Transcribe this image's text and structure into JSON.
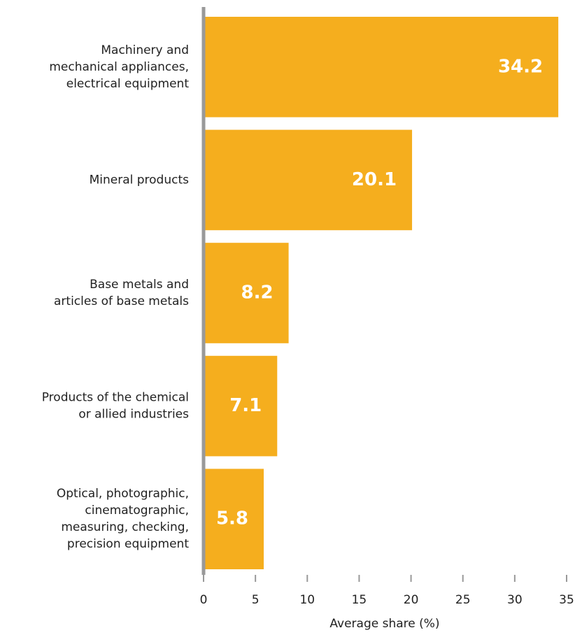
{
  "chart_data": {
    "type": "barh",
    "categories": [
      [
        "Machinery and",
        "mechanical appliances,",
        "electrical equipment"
      ],
      [
        "Mineral products"
      ],
      [
        "Base metals and",
        "articles of base metals"
      ],
      [
        "Products of the chemical",
        "or allied industries"
      ],
      [
        "Optical, photographic,",
        "cinematographic,",
        "measuring, checking,",
        "precision equipment"
      ]
    ],
    "values": [
      34.2,
      20.1,
      8.2,
      7.1,
      5.8
    ],
    "color": "#f5ae1e",
    "xlabel": "Average share (%)",
    "xlim": [
      0,
      35
    ],
    "xticks": [
      0,
      5,
      10,
      15,
      20,
      25,
      30,
      35
    ]
  }
}
